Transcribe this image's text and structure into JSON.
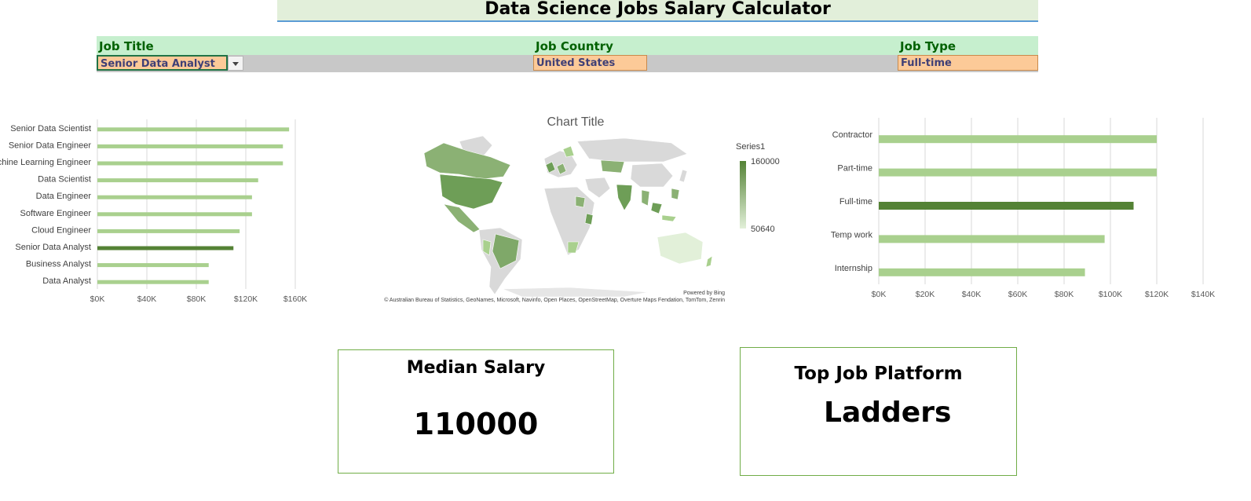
{
  "title": "Data Science Jobs Salary Calculator",
  "filters": {
    "job_title_label": "Job Title",
    "job_title_value": "Senior Data Analyst",
    "job_country_label": "Job Country",
    "job_country_value": "United States",
    "job_type_label": "Job Type",
    "job_type_value": "Full-time"
  },
  "colors": {
    "bar_normal": "#a9d08e",
    "bar_highlight": "#548235",
    "map_dark": "#6e9e57",
    "map_light": "#e2f0d9",
    "map_none": "#d9d9d9"
  },
  "map": {
    "title": "Chart Title",
    "legend_title": "Series1",
    "legend_max": "160000",
    "legend_min": "50640",
    "powered_by": "Powered by Bing",
    "attribution": "© Australian Bureau of Statistics, GeoNames, Microsoft, Navinfo, Open Places, OpenStreetMap, Overture Maps Fendation, TomTom, Zenrin"
  },
  "chart_data": [
    {
      "type": "bar",
      "orientation": "horizontal",
      "categories": [
        "Senior Data Scientist",
        "Senior Data Engineer",
        "Machine Learning Engineer",
        "Data Scientist",
        "Data Engineer",
        "Software Engineer",
        "Cloud Engineer",
        "Senior Data Analyst",
        "Business Analyst",
        "Data Analyst"
      ],
      "values": [
        155000,
        150000,
        150000,
        130000,
        125000,
        125000,
        115000,
        110000,
        90000,
        90000
      ],
      "highlight": "Senior Data Analyst",
      "xlim": [
        0,
        160000
      ],
      "xticks": [
        "$0K",
        "$40K",
        "$80K",
        "$120K",
        "$160K"
      ],
      "grid": true
    },
    {
      "type": "bar",
      "orientation": "horizontal",
      "categories": [
        "Contractor",
        "Part-time",
        "Full-time",
        "Temp work",
        "Internship"
      ],
      "values": [
        120000,
        120000,
        110000,
        97500,
        89000
      ],
      "highlight": "Full-time",
      "xlim": [
        0,
        140000
      ],
      "xticks": [
        "$0K",
        "$20K",
        "$40K",
        "$60K",
        "$80K",
        "$100K",
        "$120K",
        "$140K"
      ],
      "grid": true
    }
  ],
  "median": {
    "label": "Median Salary",
    "value": "110000"
  },
  "platform": {
    "label": "Top Job Platform",
    "value": "Ladders"
  }
}
